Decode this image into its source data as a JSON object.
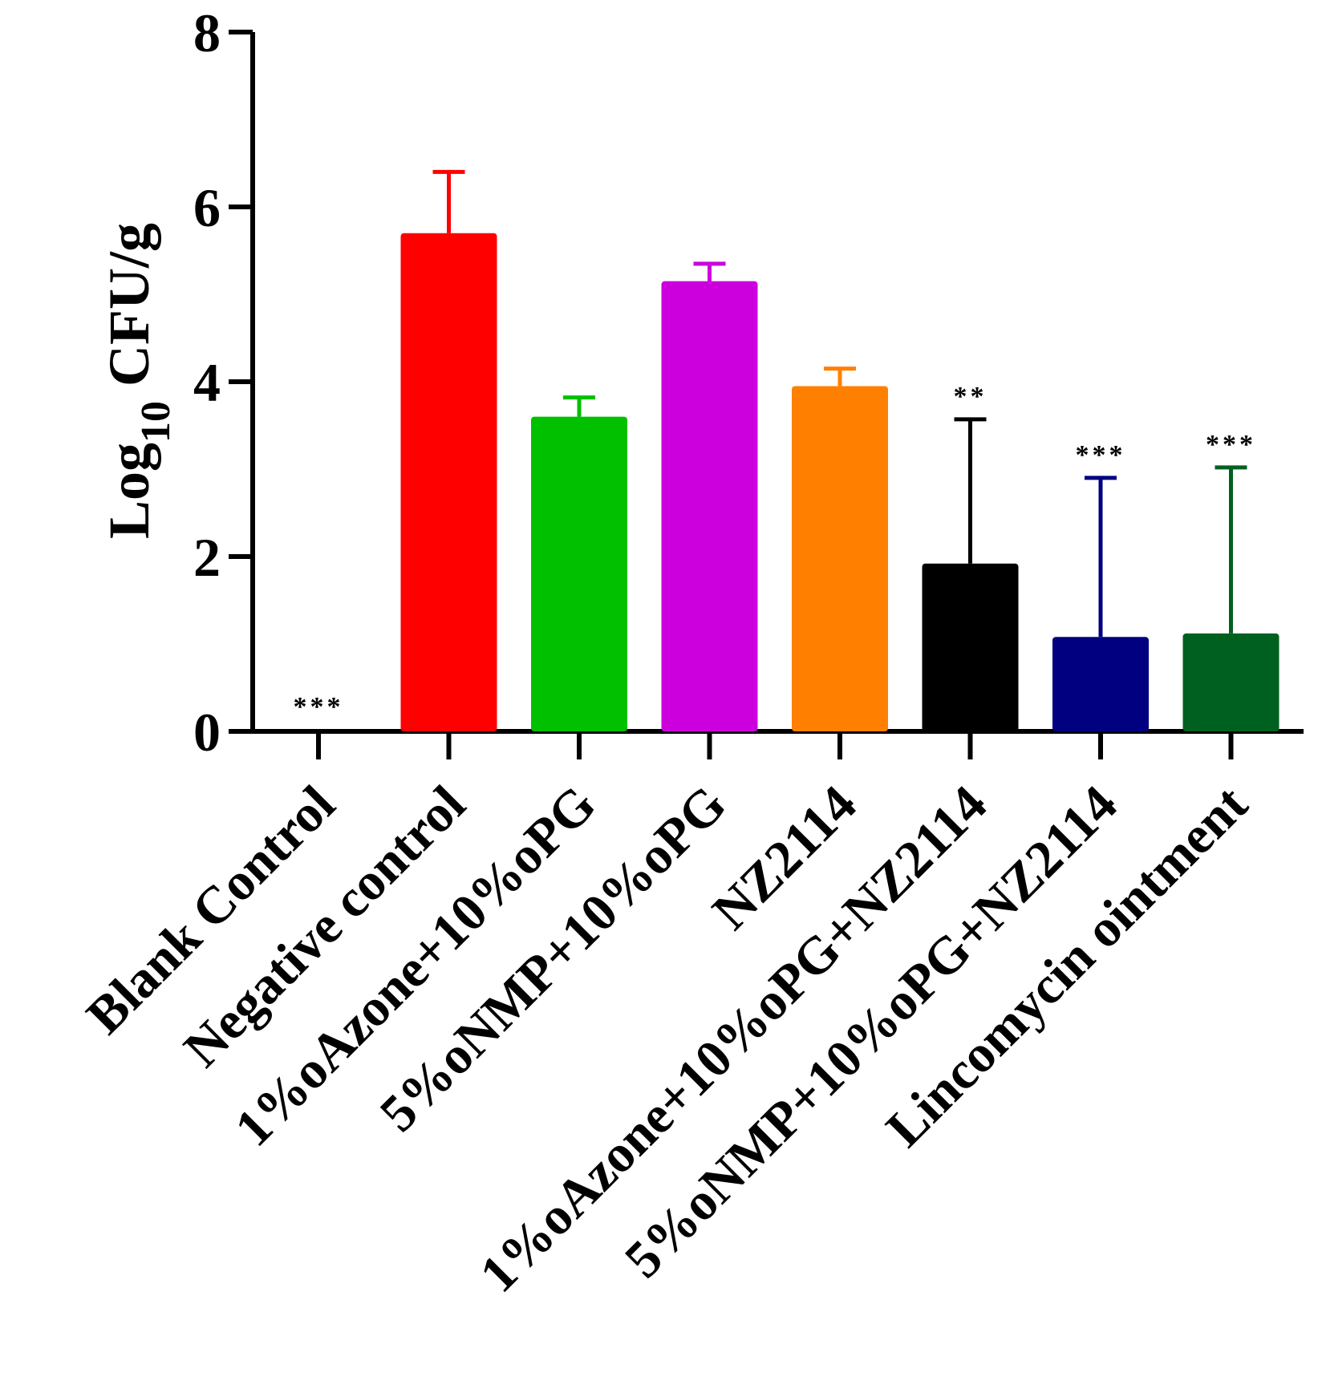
{
  "chart_data": {
    "type": "bar",
    "title": "",
    "xlabel": "",
    "ylabel": {
      "prefix": "Log",
      "subscript": "10",
      "suffix": " CFU/g"
    },
    "ylim": [
      0,
      8
    ],
    "yticks": [
      0,
      2,
      4,
      6,
      8
    ],
    "categories": [
      "Blank Control",
      "Negative control",
      "1%oAzone+10%oPG",
      "5%oNMP+10%oPG",
      "NZ2114",
      "1%oAzone+10%oPG+NZ2114",
      "5%oNMP+10%oPG+NZ2114",
      "Lincomycin ointment"
    ],
    "values": [
      0,
      5.7,
      3.6,
      5.15,
      3.95,
      1.92,
      1.08,
      1.12
    ],
    "errors": [
      0,
      0.7,
      0.22,
      0.2,
      0.2,
      1.65,
      1.82,
      1.9
    ],
    "significance": [
      "***",
      "",
      "",
      "",
      "",
      "**",
      "***",
      "***"
    ],
    "colors": [
      "#000000",
      "#ff0000",
      "#00c000",
      "#cc00dd",
      "#ff8000",
      "#000000",
      "#000080",
      "#006020"
    ]
  }
}
